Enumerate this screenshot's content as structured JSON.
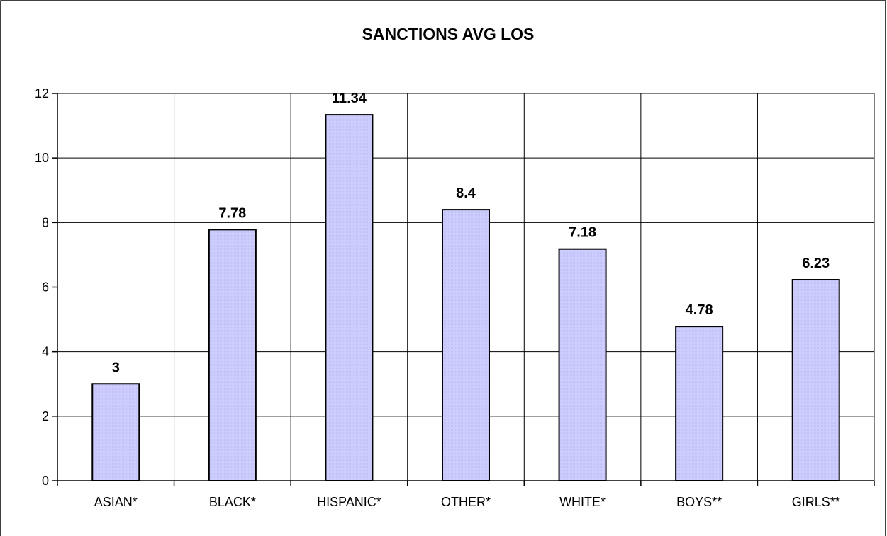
{
  "chart_data": {
    "type": "bar",
    "title": "SANCTIONS AVG LOS",
    "categories": [
      "ASIAN*",
      "BLACK*",
      "HISPANIC*",
      "OTHER*",
      "WHITE*",
      "BOYS**",
      "GIRLS**"
    ],
    "values": [
      3,
      7.78,
      11.34,
      8.4,
      7.18,
      4.78,
      6.23
    ],
    "data_labels": [
      "3",
      "7.78",
      "11.34",
      "8.4",
      "7.18",
      "4.78",
      "6.23"
    ],
    "y_ticks": [
      "0",
      "2",
      "4",
      "6",
      "8",
      "10",
      "12"
    ],
    "ylim": [
      0,
      12
    ],
    "y_step": 2,
    "grid": "horizontal and vertical",
    "legend": "none",
    "bar_fill": "#ccccff",
    "bar_stroke": "#000000",
    "grid_color": "#000000"
  }
}
